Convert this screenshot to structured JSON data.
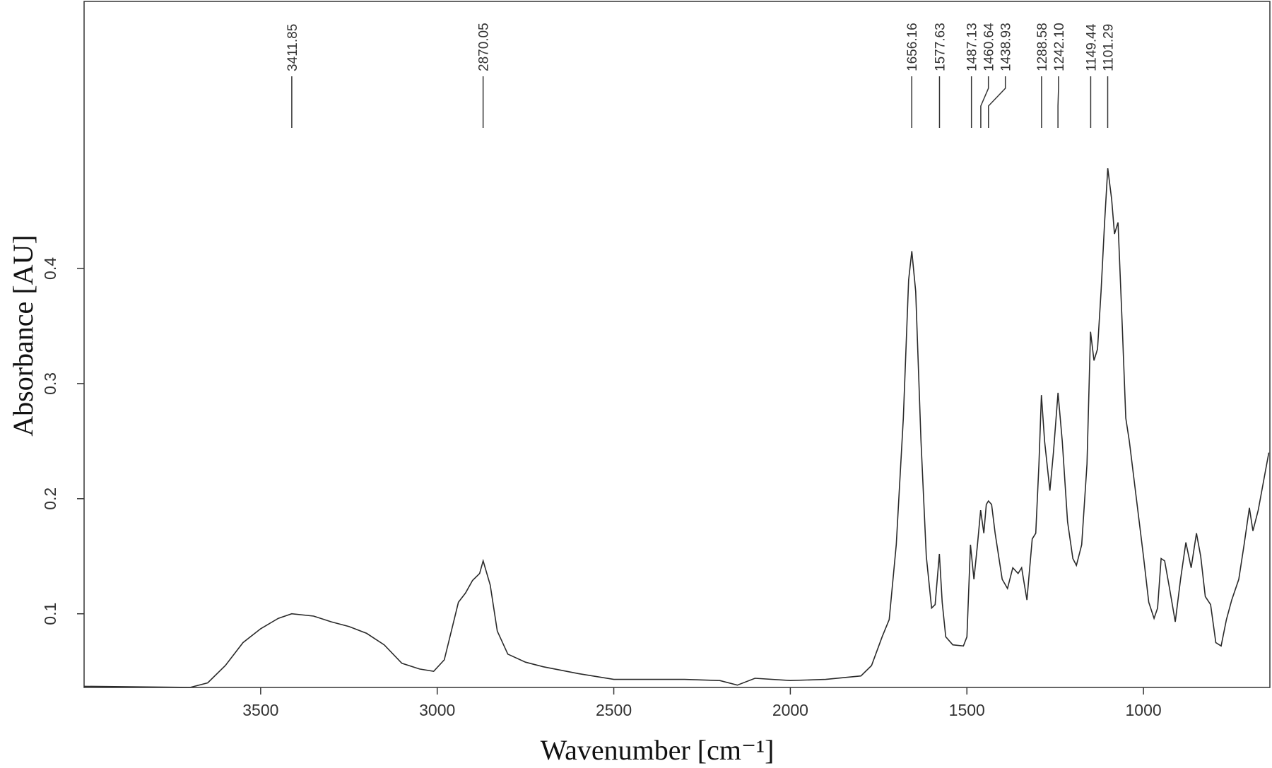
{
  "chart_data": {
    "type": "line",
    "x_label": "Wavenumber [cm⁻¹]",
    "y_label": "Absorbance [AU]",
    "x_reversed": true,
    "color": "#2a2a2a",
    "xlim": [
      4000,
      642
    ],
    "ylim": [
      0.036,
      0.632
    ],
    "xticks": [
      3500,
      3000,
      2500,
      2000,
      1500,
      1000
    ],
    "yticks": [
      0.1,
      0.2,
      0.3,
      0.4
    ],
    "peak_labels": [
      {
        "value": 3411.85,
        "label": "3411.85"
      },
      {
        "value": 2870.05,
        "label": "2870.05"
      },
      {
        "value": 1656.16,
        "label": "1656.16"
      },
      {
        "value": 1577.63,
        "label": "1577.63"
      },
      {
        "value": 1487.13,
        "label": "1487.13"
      },
      {
        "value": 1460.64,
        "label": "1460.64"
      },
      {
        "value": 1438.93,
        "label": "1438.93"
      },
      {
        "value": 1288.58,
        "label": "1288.58"
      },
      {
        "value": 1242.1,
        "label": "1242.10"
      },
      {
        "value": 1149.44,
        "label": "1149.44"
      },
      {
        "value": 1101.29,
        "label": "1101.29"
      }
    ],
    "x": [
      4000,
      3700,
      3650,
      3600,
      3550,
      3500,
      3450,
      3412,
      3350,
      3300,
      3250,
      3200,
      3150,
      3100,
      3050,
      3010,
      2980,
      2960,
      2940,
      2920,
      2900,
      2880,
      2870,
      2850,
      2830,
      2800,
      2750,
      2700,
      2600,
      2500,
      2300,
      2200,
      2150,
      2100,
      2000,
      1900,
      1800,
      1770,
      1740,
      1720,
      1700,
      1680,
      1665,
      1656,
      1645,
      1630,
      1615,
      1600,
      1590,
      1578,
      1570,
      1560,
      1540,
      1510,
      1500,
      1490,
      1480,
      1470,
      1461,
      1452,
      1445,
      1439,
      1430,
      1420,
      1400,
      1385,
      1370,
      1355,
      1345,
      1330,
      1315,
      1305,
      1296,
      1289,
      1280,
      1265,
      1255,
      1242,
      1230,
      1215,
      1200,
      1190,
      1175,
      1160,
      1150,
      1140,
      1130,
      1120,
      1110,
      1101,
      1090,
      1082,
      1072,
      1060,
      1050,
      1040,
      1020,
      1000,
      985,
      970,
      960,
      950,
      940,
      925,
      910,
      895,
      880,
      865,
      850,
      838,
      825,
      810,
      795,
      780,
      765,
      750,
      730,
      715,
      700,
      690,
      675,
      660,
      645
    ],
    "values": [
      0.037,
      0.036,
      0.04,
      0.055,
      0.075,
      0.087,
      0.096,
      0.1,
      0.098,
      0.093,
      0.089,
      0.083,
      0.073,
      0.057,
      0.052,
      0.05,
      0.06,
      0.085,
      0.11,
      0.118,
      0.129,
      0.135,
      0.146,
      0.125,
      0.085,
      0.065,
      0.058,
      0.054,
      0.048,
      0.043,
      0.043,
      0.042,
      0.038,
      0.044,
      0.042,
      0.043,
      0.046,
      0.055,
      0.08,
      0.095,
      0.16,
      0.27,
      0.39,
      0.415,
      0.38,
      0.25,
      0.15,
      0.105,
      0.108,
      0.152,
      0.11,
      0.08,
      0.073,
      0.072,
      0.08,
      0.16,
      0.13,
      0.16,
      0.19,
      0.17,
      0.195,
      0.198,
      0.195,
      0.17,
      0.13,
      0.122,
      0.14,
      0.135,
      0.14,
      0.112,
      0.165,
      0.17,
      0.23,
      0.29,
      0.25,
      0.207,
      0.24,
      0.292,
      0.25,
      0.18,
      0.148,
      0.142,
      0.16,
      0.23,
      0.345,
      0.32,
      0.33,
      0.38,
      0.44,
      0.487,
      0.46,
      0.43,
      0.44,
      0.35,
      0.27,
      0.25,
      0.2,
      0.15,
      0.11,
      0.096,
      0.105,
      0.148,
      0.146,
      0.12,
      0.093,
      0.13,
      0.162,
      0.14,
      0.17,
      0.15,
      0.115,
      0.108,
      0.075,
      0.072,
      0.095,
      0.112,
      0.13,
      0.16,
      0.192,
      0.172,
      0.19,
      0.215,
      0.24
    ]
  }
}
